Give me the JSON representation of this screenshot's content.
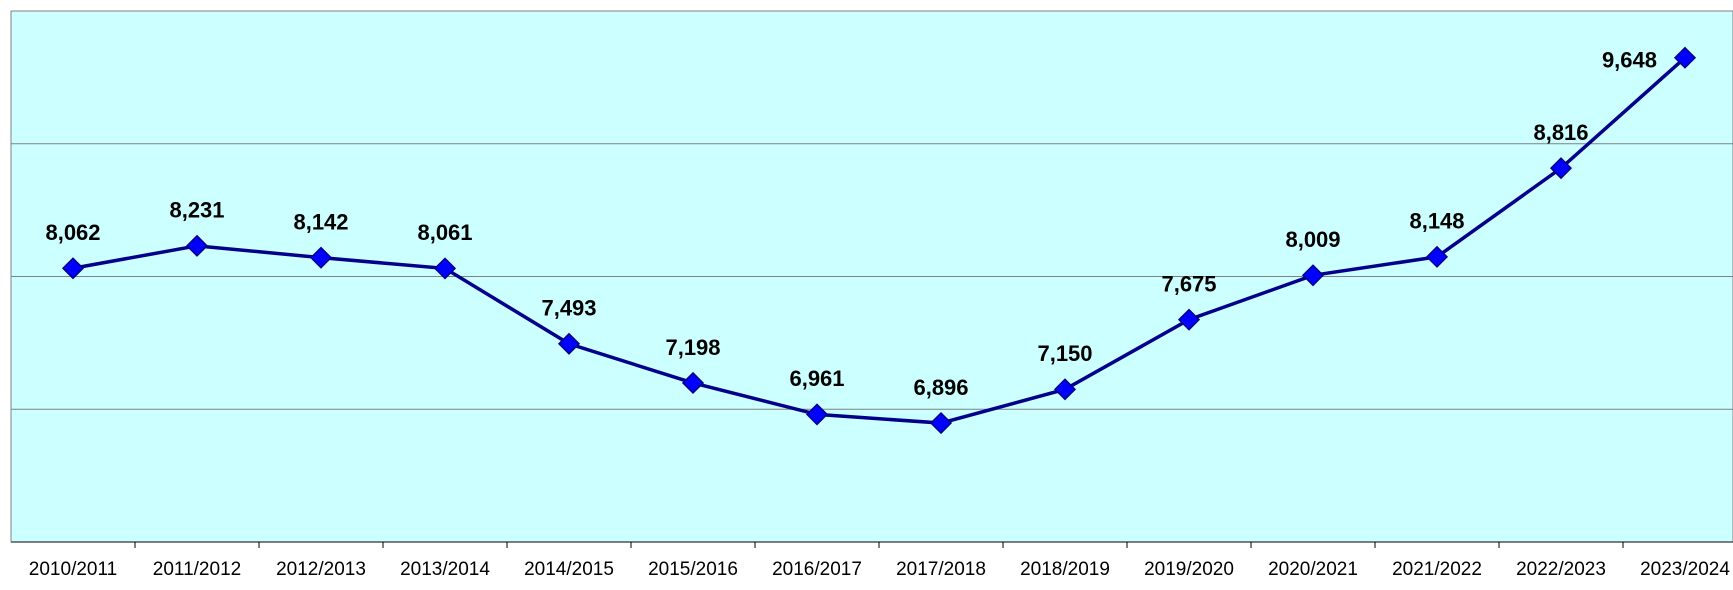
{
  "chart_data": {
    "type": "line",
    "categories": [
      "2010/2011",
      "2011/2012",
      "2012/2013",
      "2013/2014",
      "2014/2015",
      "2015/2016",
      "2016/2017",
      "2017/2018",
      "2018/2019",
      "2019/2020",
      "2020/2021",
      "2021/2022",
      "2022/2023",
      "2023/2024"
    ],
    "series": [
      {
        "color": "#00008b",
        "marker_color": "#0000ff",
        "values": [
          8062,
          8231,
          8142,
          8061,
          7493,
          7198,
          6961,
          6896,
          7150,
          7675,
          8009,
          8148,
          8816,
          9648
        ],
        "value_labels": [
          "8,062",
          "8,231",
          "8,142",
          "8,061",
          "7,493",
          "7,198",
          "6,961",
          "6,896",
          "7,150",
          "7,675",
          "8,009",
          "8,148",
          "8,816",
          "9,648"
        ]
      }
    ],
    "ylim": [
      6000,
      10000
    ],
    "yticks": [
      6000,
      7000,
      8000,
      9000,
      10000
    ],
    "grid": true,
    "background": "#ccffff"
  }
}
